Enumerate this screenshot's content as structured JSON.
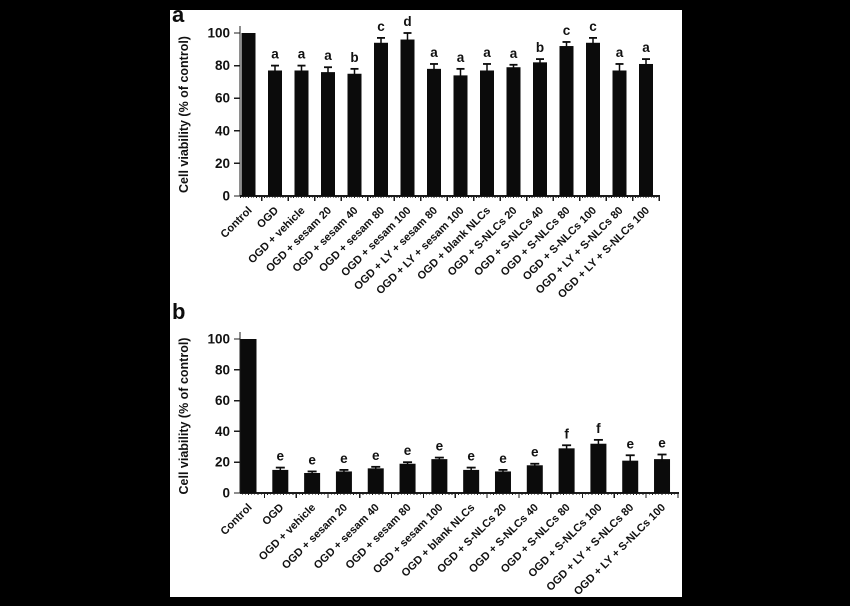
{
  "figure": {
    "panels": [
      {
        "label": "a"
      },
      {
        "label": "b"
      }
    ],
    "colors": {
      "background": "#000000",
      "paper": "#ffffff",
      "bar": "#0b0b0b",
      "axis": "#1c1c1c",
      "text": "#111111"
    }
  },
  "chart_data": [
    {
      "type": "bar",
      "panel_label": "a",
      "title": "",
      "xlabel": "",
      "ylabel": "Cell viability (% of control)",
      "ylim": [
        0,
        100
      ],
      "yticks": [
        0,
        20,
        40,
        60,
        80,
        100
      ],
      "grid": false,
      "legend": false,
      "categories": [
        "Control",
        "OGD",
        "OGD + vehicle",
        "OGD + sesam 20",
        "OGD + sesam 40",
        "OGD + sesam 80",
        "OGD + sesam 100",
        "OGD + LY + sesam 80",
        "OGD + LY + sesam 100",
        "OGD + blank NLCs",
        "OGD + S-NLCs 20",
        "OGD + S-NLCs 40",
        "OGD + S-NLCs 80",
        "OGD + S-NLCs 100",
        "OGD + LY + S-NLCs 80",
        "OGD + LY + S-NLCs 100"
      ],
      "values": [
        100,
        77,
        77,
        76,
        75,
        94,
        96,
        78,
        74,
        77,
        79,
        82,
        92,
        94,
        77,
        81
      ],
      "errors": [
        0,
        3,
        3,
        3,
        3,
        3,
        4,
        3,
        4,
        4,
        1.5,
        2,
        2.5,
        3,
        4,
        3
      ],
      "sig_letters": [
        "",
        "a",
        "a",
        "a",
        "b",
        "c",
        "d",
        "a",
        "a",
        "a",
        "a",
        "b",
        "c",
        "c",
        "a",
        "a"
      ]
    },
    {
      "type": "bar",
      "panel_label": "b",
      "title": "",
      "xlabel": "",
      "ylabel": "Cell viability (% of control)",
      "ylim": [
        0,
        100
      ],
      "yticks": [
        0,
        20,
        40,
        60,
        80,
        100
      ],
      "grid": false,
      "legend": false,
      "categories": [
        "Control",
        "OGD",
        "OGD + vehicle",
        "OGD + sesam 20",
        "OGD + sesam 40",
        "OGD + sesam 80",
        "OGD + sesam 100",
        "OGD + blank NLCs",
        "OGD + S-NLCs 20",
        "OGD + S-NLCs 40",
        "OGD + S-NLCs 80",
        "OGD + S-NLCs 100",
        "OGD + LY + S-NLCs 80",
        "OGD + LY + S-NLCs 100"
      ],
      "values": [
        100,
        15,
        13,
        14,
        16,
        19,
        22,
        15,
        14,
        18,
        29,
        32,
        21,
        22
      ],
      "errors": [
        0,
        1.5,
        1,
        1,
        1,
        1,
        1,
        1.5,
        1,
        1,
        2,
        2.5,
        3.5,
        3
      ],
      "sig_letters": [
        "",
        "e",
        "e",
        "e",
        "e",
        "e",
        "e",
        "e",
        "e",
        "e",
        "f",
        "f",
        "e",
        "e"
      ]
    }
  ]
}
